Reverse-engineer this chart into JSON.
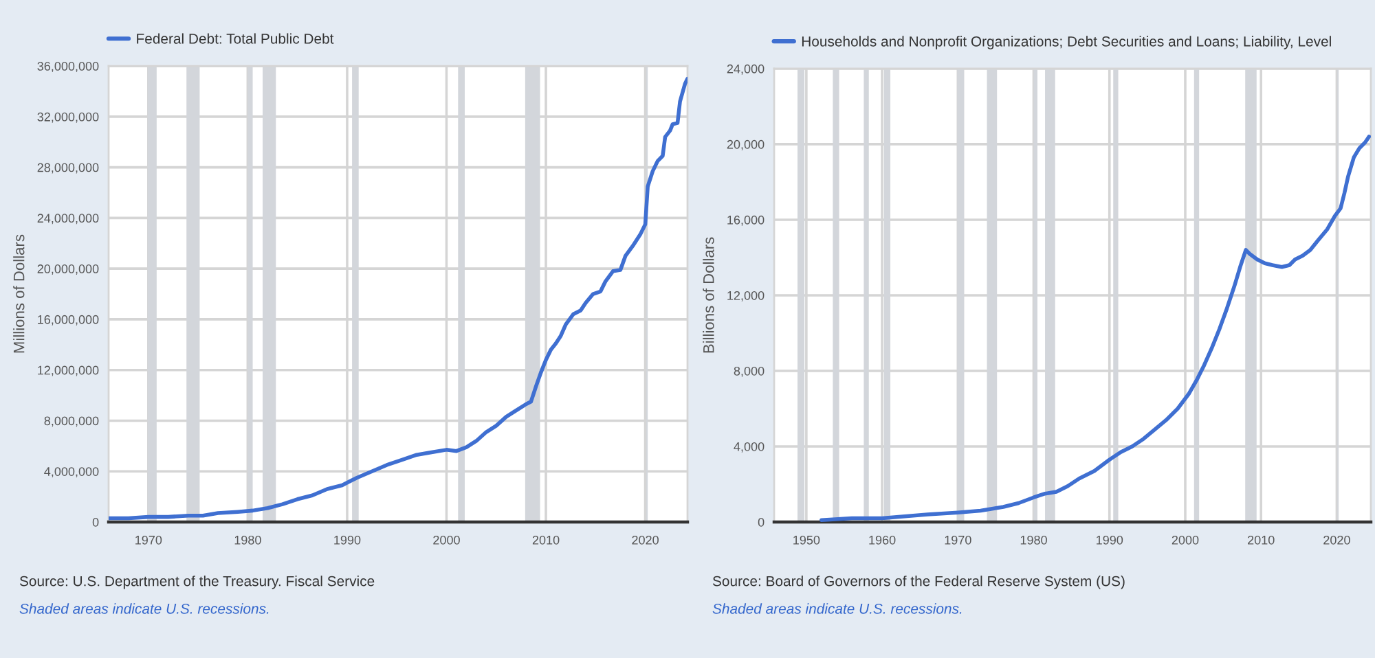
{
  "chart_data": [
    {
      "type": "line",
      "ylabel": "Millions of Dollars",
      "series": [
        {
          "name": "Federal Debt: Total Public Debt",
          "color": "#3f6fd1",
          "x": [
            "1966-01",
            "1968-01",
            "1970-01",
            "1972-01",
            "1974-01",
            "1975-07",
            "1977-01",
            "1979-01",
            "1980-07",
            "1982-01",
            "1983-07",
            "1985-01",
            "1986-07",
            "1988-01",
            "1989-07",
            "1991-01",
            "1992-07",
            "1994-01",
            "1995-07",
            "1997-01",
            "1998-07",
            "2000-01",
            "2001-01",
            "2002-01",
            "2003-01",
            "2004-01",
            "2005-01",
            "2006-01",
            "2007-01",
            "2008-01",
            "2008-07",
            "2009-01",
            "2009-07",
            "2010-01",
            "2010-07",
            "2011-01",
            "2011-07",
            "2012-01",
            "2012-10",
            "2013-07",
            "2014-01",
            "2014-10",
            "2015-07",
            "2016-01",
            "2016-10",
            "2017-07",
            "2018-01",
            "2018-10",
            "2019-07",
            "2020-01",
            "2020-04",
            "2020-10",
            "2021-04",
            "2021-10",
            "2022-01",
            "2022-07",
            "2022-10",
            "2023-04",
            "2023-07",
            "2024-01",
            "2024-04"
          ],
          "values": [
            300000,
            300000,
            400000,
            400000,
            500000,
            500000,
            700000,
            800000,
            900000,
            1100000,
            1400000,
            1800000,
            2100000,
            2600000,
            2900000,
            3500000,
            4000000,
            4500000,
            4900000,
            5300000,
            5500000,
            5700000,
            5600000,
            5900000,
            6400000,
            7100000,
            7600000,
            8300000,
            8800000,
            9300000,
            9500000,
            10700000,
            11800000,
            12800000,
            13600000,
            14100000,
            14700000,
            15600000,
            16400000,
            16700000,
            17300000,
            18000000,
            18200000,
            19000000,
            19800000,
            19900000,
            21000000,
            21800000,
            22700000,
            23500000,
            26500000,
            27700000,
            28500000,
            28900000,
            30400000,
            30900000,
            31400000,
            31500000,
            33200000,
            34600000,
            35000000
          ]
        }
      ],
      "xlim": [
        "1966-01",
        "2024-04"
      ],
      "xticks": [
        "1970",
        "1980",
        "1990",
        "2000",
        "2010",
        "2020"
      ],
      "ylim": [
        0,
        36000000
      ],
      "yticks": [
        {
          "value": 0,
          "label": "0"
        },
        {
          "value": 4000000,
          "label": "4,000,000"
        },
        {
          "value": 8000000,
          "label": "8,000,000"
        },
        {
          "value": 12000000,
          "label": "12,000,000"
        },
        {
          "value": 16000000,
          "label": "16,000,000"
        },
        {
          "value": 20000000,
          "label": "20,000,000"
        },
        {
          "value": 24000000,
          "label": "24,000,000"
        },
        {
          "value": 28000000,
          "label": "28,000,000"
        },
        {
          "value": 32000000,
          "label": "32,000,000"
        },
        {
          "value": 36000000,
          "label": "36,000,000"
        }
      ],
      "grid": true,
      "legend": "top left",
      "bands": [
        {
          "axis": "x",
          "from": "1969-12",
          "to": "1970-11",
          "color": "#d3d6db"
        },
        {
          "axis": "x",
          "from": "1973-11",
          "to": "1975-03",
          "color": "#d3d6db"
        },
        {
          "axis": "x",
          "from": "1980-01",
          "to": "1980-07",
          "color": "#d3d6db"
        },
        {
          "axis": "x",
          "from": "1981-07",
          "to": "1982-11",
          "color": "#d3d6db"
        },
        {
          "axis": "x",
          "from": "1990-07",
          "to": "1991-03",
          "color": "#d3d6db"
        },
        {
          "axis": "x",
          "from": "2001-03",
          "to": "2001-11",
          "color": "#d3d6db"
        },
        {
          "axis": "x",
          "from": "2007-12",
          "to": "2009-06",
          "color": "#d3d6db"
        },
        {
          "axis": "x",
          "from": "2020-02",
          "to": "2020-04",
          "color": "#d3d6db"
        }
      ],
      "annotations": [
        "Source: U.S. Department of the Treasury. Fiscal Service",
        "Shaded areas indicate U.S. recessions."
      ]
    },
    {
      "type": "line",
      "ylabel": "Billions of Dollars",
      "series": [
        {
          "name": "Households and Nonprofit Organizations; Debt Securities and Loans; Liability, Level",
          "color": "#3f6fd1",
          "x": [
            "1952-01",
            "1956-01",
            "1960-01",
            "1963-01",
            "1966-01",
            "1970-01",
            "1973-01",
            "1976-01",
            "1978-01",
            "1980-01",
            "1981-07",
            "1983-01",
            "1984-07",
            "1986-01",
            "1988-01",
            "1990-01",
            "1991-07",
            "1993-01",
            "1994-07",
            "1996-01",
            "1997-07",
            "1999-01",
            "2000-07",
            "2001-07",
            "2002-07",
            "2003-07",
            "2004-07",
            "2005-07",
            "2006-07",
            "2007-04",
            "2008-01",
            "2008-07",
            "2009-07",
            "2010-07",
            "2011-07",
            "2012-10",
            "2013-10",
            "2014-07",
            "2015-07",
            "2016-07",
            "2017-07",
            "2018-10",
            "2019-10",
            "2020-07",
            "2021-01",
            "2021-07",
            "2022-04",
            "2023-01",
            "2023-10",
            "2024-04"
          ],
          "values": [
            100,
            200,
            200,
            300,
            400,
            500,
            600,
            800,
            1000,
            1300,
            1500,
            1600,
            1900,
            2300,
            2700,
            3300,
            3700,
            4000,
            4400,
            4900,
            5400,
            6000,
            6800,
            7500,
            8300,
            9200,
            10200,
            11300,
            12500,
            13500,
            14400,
            14200,
            13900,
            13700,
            13600,
            13500,
            13600,
            13900,
            14100,
            14400,
            14900,
            15500,
            16200,
            16600,
            17400,
            18300,
            19300,
            19800,
            20100,
            20400
          ]
        }
      ],
      "xlim": [
        "1945-10",
        "2024-07"
      ],
      "xticks": [
        "1950",
        "1960",
        "1970",
        "1980",
        "1990",
        "2000",
        "2010",
        "2020"
      ],
      "ylim": [
        0,
        24000
      ],
      "yticks": [
        {
          "value": 0,
          "label": "0"
        },
        {
          "value": 4000,
          "label": "4,000"
        },
        {
          "value": 8000,
          "label": "8,000"
        },
        {
          "value": 12000,
          "label": "12,000"
        },
        {
          "value": 16000,
          "label": "16,000"
        },
        {
          "value": 20000,
          "label": "20,000"
        },
        {
          "value": 24000,
          "label": "24,000"
        }
      ],
      "grid": true,
      "legend": "top left",
      "bands": [
        {
          "axis": "x",
          "from": "1948-11",
          "to": "1949-10",
          "color": "#d3d6db"
        },
        {
          "axis": "x",
          "from": "1953-07",
          "to": "1954-05",
          "color": "#d3d6db"
        },
        {
          "axis": "x",
          "from": "1957-08",
          "to": "1958-04",
          "color": "#d3d6db"
        },
        {
          "axis": "x",
          "from": "1960-04",
          "to": "1961-02",
          "color": "#d3d6db"
        },
        {
          "axis": "x",
          "from": "1969-12",
          "to": "1970-11",
          "color": "#d3d6db"
        },
        {
          "axis": "x",
          "from": "1973-11",
          "to": "1975-03",
          "color": "#d3d6db"
        },
        {
          "axis": "x",
          "from": "1980-01",
          "to": "1980-07",
          "color": "#d3d6db"
        },
        {
          "axis": "x",
          "from": "1981-07",
          "to": "1982-11",
          "color": "#d3d6db"
        },
        {
          "axis": "x",
          "from": "1990-07",
          "to": "1991-03",
          "color": "#d3d6db"
        },
        {
          "axis": "x",
          "from": "2001-03",
          "to": "2001-11",
          "color": "#d3d6db"
        },
        {
          "axis": "x",
          "from": "2007-12",
          "to": "2009-06",
          "color": "#d3d6db"
        },
        {
          "axis": "x",
          "from": "2020-02",
          "to": "2020-04",
          "color": "#d3d6db"
        }
      ],
      "annotations": [
        "Source: Board of Governors of the Federal Reserve System (US)",
        "Shaded areas indicate U.S. recessions."
      ]
    }
  ]
}
